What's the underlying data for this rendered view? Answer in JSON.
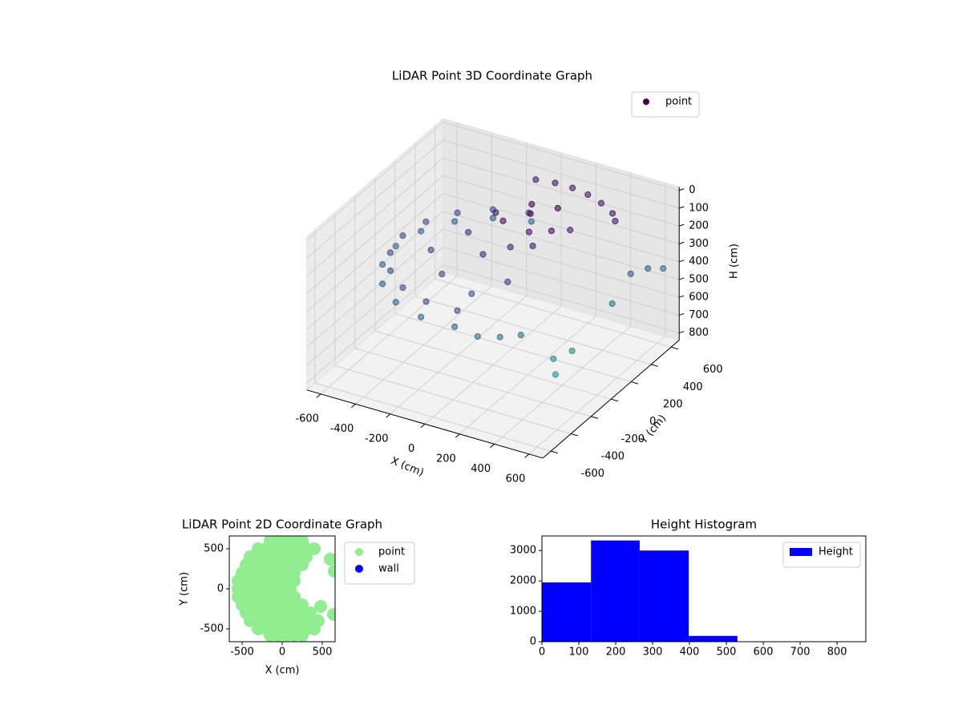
{
  "chart_data": [
    {
      "type": "scatter3d",
      "title": "LiDAR Point 3D Coordinate Graph",
      "xlabel": "X (cm)",
      "ylabel": "Y (cm)",
      "zlabel": "H (cm)",
      "xlim": [
        -680,
        680
      ],
      "ylim": [
        -680,
        680
      ],
      "zlim": [
        840,
        -20
      ],
      "xticks": [
        -600,
        -400,
        -200,
        0,
        200,
        400,
        600
      ],
      "yticks": [
        -600,
        -400,
        -200,
        0,
        200,
        400,
        600
      ],
      "zticks": [
        0,
        100,
        200,
        300,
        400,
        500,
        600,
        700,
        800
      ],
      "legend": "upper right",
      "series": [
        {
          "name": "point",
          "color": "#440154",
          "colormap": [
            "#440154",
            "#3b528b",
            "#21918c"
          ],
          "x": [
            -97,
            -280,
            -429,
            -526,
            -560,
            -526,
            -429,
            -280,
            -97,
            97,
            -90,
            -260,
            -398,
            -489,
            -520,
            -489,
            -398,
            -260,
            -90,
            90,
            200,
            300,
            380,
            -100,
            0,
            100,
            200,
            300,
            400,
            450,
            0,
            100,
            200,
            150,
            250,
            50,
            300,
            100,
            200,
            0,
            -100,
            -200,
            -300,
            -150,
            50,
            200,
            620,
            650,
            600,
            680,
            550,
            600,
            620
          ],
          "y": [
            551,
            485,
            360,
            192,
            0,
            -192,
            -360,
            -485,
            -551,
            -551,
            512,
            450,
            334,
            178,
            0,
            -178,
            -334,
            -450,
            -512,
            -512,
            -500,
            -450,
            -380,
            600,
            620,
            620,
            600,
            560,
            500,
            440,
            100,
            200,
            300,
            100,
            150,
            300,
            250,
            0,
            50,
            -100,
            200,
            100,
            -100,
            -250,
            -300,
            -200,
            300,
            420,
            150,
            520,
            -350,
            -250,
            -450
          ],
          "z": [
            330,
            330,
            330,
            330,
            330,
            330,
            330,
            330,
            330,
            330,
            260,
            260,
            260,
            260,
            260,
            260,
            260,
            260,
            260,
            260,
            380,
            380,
            380,
            120,
            120,
            120,
            120,
            120,
            120,
            120,
            80,
            60,
            50,
            100,
            90,
            70,
            120,
            150,
            140,
            170,
            110,
            200,
            230,
            250,
            280,
            220,
            300,
            320,
            400,
            360,
            480,
            470,
            500
          ]
        }
      ]
    },
    {
      "type": "scatter",
      "title": "LiDAR Point 2D Coordinate Graph",
      "xlabel": "X (cm)",
      "ylabel": "Y (cm)",
      "xlim": [
        -660,
        660
      ],
      "ylim": [
        -660,
        660
      ],
      "xticks": [
        -500,
        0,
        500
      ],
      "yticks": [
        -500,
        0,
        500
      ],
      "legend": "outside upper right",
      "series": [
        {
          "name": "point",
          "color": "#90ee90",
          "x": [
            -150,
            -50,
            50,
            150,
            250,
            -300,
            -200,
            -100,
            0,
            100,
            200,
            300,
            400,
            -400,
            -300,
            -200,
            -100,
            0,
            100,
            200,
            300,
            -450,
            -350,
            -250,
            -150,
            -50,
            50,
            150,
            250,
            -500,
            -400,
            -300,
            -200,
            -100,
            0,
            100,
            150,
            -550,
            -450,
            -350,
            -250,
            -150,
            -50,
            50,
            150,
            -550,
            -450,
            -350,
            -250,
            -150,
            -50,
            50,
            100,
            -550,
            -450,
            -350,
            -250,
            -150,
            -50,
            50,
            150,
            -500,
            -400,
            -300,
            -200,
            -100,
            0,
            100,
            200,
            250,
            -450,
            -350,
            -250,
            -150,
            -50,
            50,
            150,
            250,
            350,
            -400,
            -300,
            -200,
            -100,
            0,
            100,
            200,
            300,
            400,
            450,
            -300,
            -200,
            -100,
            0,
            100,
            200,
            300,
            400,
            -150,
            -50,
            50,
            150,
            250,
            600,
            650,
            480,
            640
          ],
          "y": [
            600,
            600,
            600,
            600,
            600,
            500,
            500,
            500,
            500,
            500,
            500,
            500,
            500,
            400,
            400,
            400,
            400,
            400,
            400,
            400,
            400,
            300,
            300,
            300,
            300,
            300,
            300,
            300,
            300,
            200,
            200,
            200,
            200,
            200,
            200,
            200,
            200,
            100,
            100,
            100,
            100,
            100,
            100,
            100,
            100,
            0,
            0,
            0,
            0,
            0,
            0,
            0,
            0,
            -100,
            -100,
            -100,
            -100,
            -100,
            -100,
            -100,
            -100,
            -200,
            -200,
            -200,
            -200,
            -200,
            -200,
            -200,
            -200,
            -200,
            -300,
            -300,
            -300,
            -300,
            -300,
            -300,
            -300,
            -300,
            -300,
            -400,
            -400,
            -400,
            -400,
            -400,
            -400,
            -400,
            -400,
            -400,
            -400,
            -500,
            -500,
            -500,
            -500,
            -500,
            -500,
            -500,
            -500,
            -580,
            -580,
            -580,
            -580,
            -580,
            370,
            220,
            -220,
            -320
          ]
        },
        {
          "name": "wall",
          "color": "#0000ff",
          "x": [],
          "y": []
        }
      ]
    },
    {
      "type": "histogram",
      "title": "Height Histogram",
      "name": "Height",
      "color": "#0000ff",
      "bins": [
        0,
        133,
        265,
        398,
        530,
        663,
        795,
        928
      ],
      "counts": [
        1950,
        3330,
        3000,
        190,
        0,
        0,
        0
      ],
      "xlim": [
        0,
        878
      ],
      "ylim": [
        0,
        3480
      ],
      "xticks": [
        0,
        100,
        200,
        300,
        400,
        500,
        600,
        700,
        800
      ],
      "yticks": [
        0,
        1000,
        2000,
        3000
      ],
      "legend": "upper right"
    }
  ]
}
